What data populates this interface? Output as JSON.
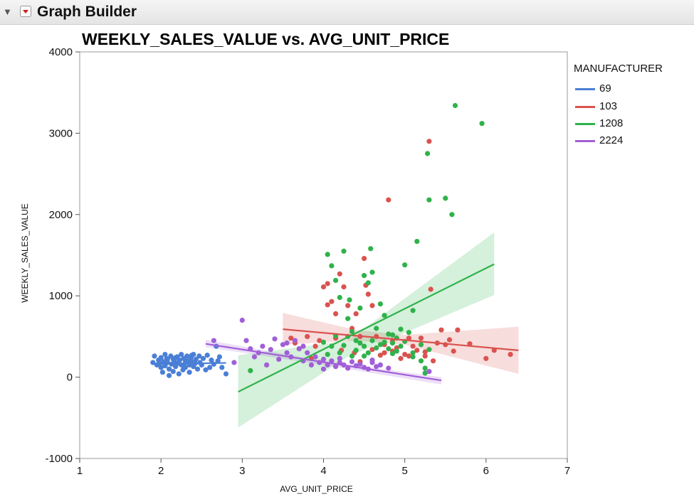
{
  "window": {
    "title": "Graph Builder",
    "icons": {
      "disclosure": "disclosure-triangle-icon",
      "menu": "red-triangle-menu-icon"
    }
  },
  "chart_data": {
    "type": "scatter",
    "title": "WEEKLY_SALES_VALUE vs. AVG_UNIT_PRICE",
    "xlabel": "AVG_UNIT_PRICE",
    "ylabel": "WEEKLY_SALES_VALUE",
    "xlim": [
      1,
      7
    ],
    "ylim": [
      -1000,
      4000
    ],
    "xticks": [
      "1",
      "2",
      "3",
      "4",
      "5",
      "6",
      "7"
    ],
    "yticks": [
      "-1000",
      "0",
      "1000",
      "2000",
      "3000",
      "4000"
    ],
    "grid": false,
    "legend": {
      "title": "MANUFACTURER",
      "position": "right"
    },
    "series": [
      {
        "name": "69",
        "color": "#4a7fd6",
        "fit": {
          "x": [
            1.9,
            2.8
          ],
          "y": [
            160,
            175
          ]
        },
        "points": [
          [
            1.9,
            180
          ],
          [
            1.92,
            260
          ],
          [
            1.95,
            150
          ],
          [
            1.97,
            210
          ],
          [
            1.98,
            170
          ],
          [
            2.0,
            240
          ],
          [
            2.0,
            120
          ],
          [
            2.02,
            60
          ],
          [
            2.03,
            190
          ],
          [
            2.05,
            280
          ],
          [
            2.05,
            140
          ],
          [
            2.07,
            230
          ],
          [
            2.08,
            180
          ],
          [
            2.1,
            100
          ],
          [
            2.1,
            20
          ],
          [
            2.12,
            260
          ],
          [
            2.13,
            160
          ],
          [
            2.15,
            220
          ],
          [
            2.15,
            70
          ],
          [
            2.17,
            190
          ],
          [
            2.18,
            130
          ],
          [
            2.2,
            250
          ],
          [
            2.2,
            170
          ],
          [
            2.22,
            40
          ],
          [
            2.23,
            210
          ],
          [
            2.25,
            150
          ],
          [
            2.25,
            280
          ],
          [
            2.27,
            90
          ],
          [
            2.28,
            230
          ],
          [
            2.3,
            180
          ],
          [
            2.3,
            120
          ],
          [
            2.32,
            260
          ],
          [
            2.33,
            200
          ],
          [
            2.35,
            150
          ],
          [
            2.35,
            60
          ],
          [
            2.37,
            240
          ],
          [
            2.38,
            190
          ],
          [
            2.4,
            130
          ],
          [
            2.4,
            280
          ],
          [
            2.42,
            170
          ],
          [
            2.43,
            220
          ],
          [
            2.45,
            100
          ],
          [
            2.47,
            260
          ],
          [
            2.48,
            180
          ],
          [
            2.5,
            150
          ],
          [
            2.52,
            230
          ],
          [
            2.55,
            90
          ],
          [
            2.57,
            270
          ],
          [
            2.6,
            120
          ],
          [
            2.62,
            210
          ],
          [
            2.65,
            160
          ],
          [
            2.68,
            380
          ],
          [
            2.7,
            200
          ],
          [
            2.72,
            250
          ],
          [
            2.75,
            120
          ],
          [
            2.8,
            40
          ],
          [
            2.08,
            220
          ],
          [
            2.18,
            240
          ],
          [
            2.28,
            140
          ],
          [
            2.38,
            270
          ]
        ]
      },
      {
        "name": "103",
        "color": "#d9534f",
        "fit": {
          "x": [
            3.5,
            6.4
          ],
          "y": [
            590,
            330
          ]
        },
        "band": {
          "x": [
            3.5,
            4.4,
            5.0,
            6.4
          ],
          "lo": [
            400,
            450,
            400,
            40
          ],
          "hi": [
            790,
            580,
            520,
            620
          ]
        },
        "points": [
          [
            3.6,
            480
          ],
          [
            3.65,
            420
          ],
          [
            3.7,
            350
          ],
          [
            3.8,
            500
          ],
          [
            3.85,
            230
          ],
          [
            3.9,
            380
          ],
          [
            3.95,
            450
          ],
          [
            4.0,
            1110
          ],
          [
            4.05,
            1150
          ],
          [
            4.05,
            890
          ],
          [
            4.1,
            930
          ],
          [
            4.15,
            780
          ],
          [
            4.2,
            1270
          ],
          [
            4.22,
            330
          ],
          [
            4.25,
            1110
          ],
          [
            4.3,
            880
          ],
          [
            4.35,
            600
          ],
          [
            4.38,
            300
          ],
          [
            4.4,
            780
          ],
          [
            4.45,
            190
          ],
          [
            4.5,
            1460
          ],
          [
            4.52,
            1130
          ],
          [
            4.55,
            1020
          ],
          [
            4.6,
            880
          ],
          [
            4.6,
            340
          ],
          [
            4.65,
            500
          ],
          [
            4.7,
            270
          ],
          [
            4.75,
            400
          ],
          [
            4.8,
            2180
          ],
          [
            4.85,
            450
          ],
          [
            4.9,
            360
          ],
          [
            4.95,
            230
          ],
          [
            5.0,
            280
          ],
          [
            5.05,
            480
          ],
          [
            5.1,
            380
          ],
          [
            5.15,
            330
          ],
          [
            5.2,
            480
          ],
          [
            5.25,
            260
          ],
          [
            5.3,
            2900
          ],
          [
            5.32,
            1080
          ],
          [
            5.35,
            200
          ],
          [
            5.4,
            420
          ],
          [
            5.45,
            580
          ],
          [
            5.5,
            400
          ],
          [
            5.55,
            460
          ],
          [
            5.6,
            320
          ],
          [
            5.65,
            580
          ],
          [
            5.8,
            410
          ],
          [
            6.0,
            230
          ],
          [
            6.1,
            330
          ],
          [
            6.3,
            280
          ],
          [
            4.45,
            500
          ],
          [
            4.75,
            300
          ],
          [
            5.05,
            260
          ],
          [
            5.25,
            310
          ],
          [
            4.15,
            480
          ],
          [
            4.85,
            320
          ]
        ]
      },
      {
        "name": "1208",
        "color": "#2fb24a",
        "fit": {
          "x": [
            2.95,
            6.1
          ],
          "y": [
            -180,
            1390
          ]
        },
        "band": {
          "x": [
            2.95,
            4.3,
            6.1
          ],
          "lo": [
            -620,
            250,
            1010
          ],
          "hi": [
            270,
            450,
            1780
          ]
        },
        "points": [
          [
            3.1,
            80
          ],
          [
            4.05,
            1510
          ],
          [
            4.1,
            1370
          ],
          [
            4.15,
            1190
          ],
          [
            4.2,
            980
          ],
          [
            4.25,
            1550
          ],
          [
            4.3,
            720
          ],
          [
            4.32,
            950
          ],
          [
            4.35,
            560
          ],
          [
            4.4,
            450
          ],
          [
            4.45,
            850
          ],
          [
            4.5,
            1250
          ],
          [
            4.55,
            1160
          ],
          [
            4.58,
            1580
          ],
          [
            4.6,
            1290
          ],
          [
            4.65,
            600
          ],
          [
            4.7,
            900
          ],
          [
            4.75,
            760
          ],
          [
            4.8,
            530
          ],
          [
            4.85,
            420
          ],
          [
            4.9,
            320
          ],
          [
            4.95,
            590
          ],
          [
            5.0,
            1380
          ],
          [
            5.05,
            550
          ],
          [
            5.1,
            820
          ],
          [
            5.15,
            1670
          ],
          [
            5.2,
            200
          ],
          [
            5.25,
            110
          ],
          [
            5.28,
            2750
          ],
          [
            5.3,
            2180
          ],
          [
            5.5,
            2200
          ],
          [
            5.58,
            2000
          ],
          [
            5.62,
            3340
          ],
          [
            5.95,
            3120
          ],
          [
            4.0,
            430
          ],
          [
            4.1,
            380
          ],
          [
            4.2,
            300
          ],
          [
            4.3,
            500
          ],
          [
            4.4,
            330
          ],
          [
            4.5,
            380
          ],
          [
            4.6,
            450
          ],
          [
            4.7,
            400
          ],
          [
            4.8,
            350
          ],
          [
            4.9,
            480
          ],
          [
            5.0,
            440
          ],
          [
            5.1,
            300
          ],
          [
            5.2,
            400
          ],
          [
            5.3,
            340
          ],
          [
            4.15,
            510
          ],
          [
            4.25,
            390
          ],
          [
            4.35,
            260
          ],
          [
            4.45,
            420
          ],
          [
            4.55,
            300
          ],
          [
            4.65,
            360
          ],
          [
            4.75,
            430
          ],
          [
            4.85,
            290
          ],
          [
            4.95,
            380
          ],
          [
            5.1,
            250
          ],
          [
            5.25,
            50
          ],
          [
            4.05,
            280
          ],
          [
            4.5,
            260
          ],
          [
            4.85,
            520
          ]
        ]
      },
      {
        "name": "2224",
        "color": "#a15fd8",
        "fit": {
          "x": [
            2.55,
            5.45
          ],
          "y": [
            410,
            -40
          ]
        },
        "band": {
          "x": [
            2.55,
            4.0,
            5.45
          ],
          "lo": [
            370,
            150,
            -90
          ],
          "hi": [
            460,
            200,
            0
          ]
        },
        "points": [
          [
            2.65,
            450
          ],
          [
            2.9,
            180
          ],
          [
            3.0,
            700
          ],
          [
            3.05,
            450
          ],
          [
            3.1,
            350
          ],
          [
            3.15,
            250
          ],
          [
            3.2,
            300
          ],
          [
            3.25,
            380
          ],
          [
            3.3,
            150
          ],
          [
            3.35,
            340
          ],
          [
            3.4,
            470
          ],
          [
            3.45,
            220
          ],
          [
            3.5,
            400
          ],
          [
            3.55,
            300
          ],
          [
            3.6,
            250
          ],
          [
            3.65,
            450
          ],
          [
            3.7,
            350
          ],
          [
            3.75,
            200
          ],
          [
            3.8,
            300
          ],
          [
            3.85,
            150
          ],
          [
            3.9,
            250
          ],
          [
            3.95,
            180
          ],
          [
            4.0,
            220
          ],
          [
            4.05,
            150
          ],
          [
            4.1,
            200
          ],
          [
            4.15,
            130
          ],
          [
            4.2,
            180
          ],
          [
            4.25,
            150
          ],
          [
            4.3,
            110
          ],
          [
            4.35,
            190
          ],
          [
            4.4,
            140
          ],
          [
            4.45,
            160
          ],
          [
            4.5,
            120
          ],
          [
            4.55,
            100
          ],
          [
            4.6,
            180
          ],
          [
            4.65,
            130
          ],
          [
            4.7,
            150
          ],
          [
            4.8,
            110
          ],
          [
            5.3,
            70
          ],
          [
            3.55,
            420
          ],
          [
            3.75,
            380
          ],
          [
            4.0,
            100
          ],
          [
            4.2,
            230
          ],
          [
            4.6,
            210
          ]
        ]
      }
    ]
  }
}
